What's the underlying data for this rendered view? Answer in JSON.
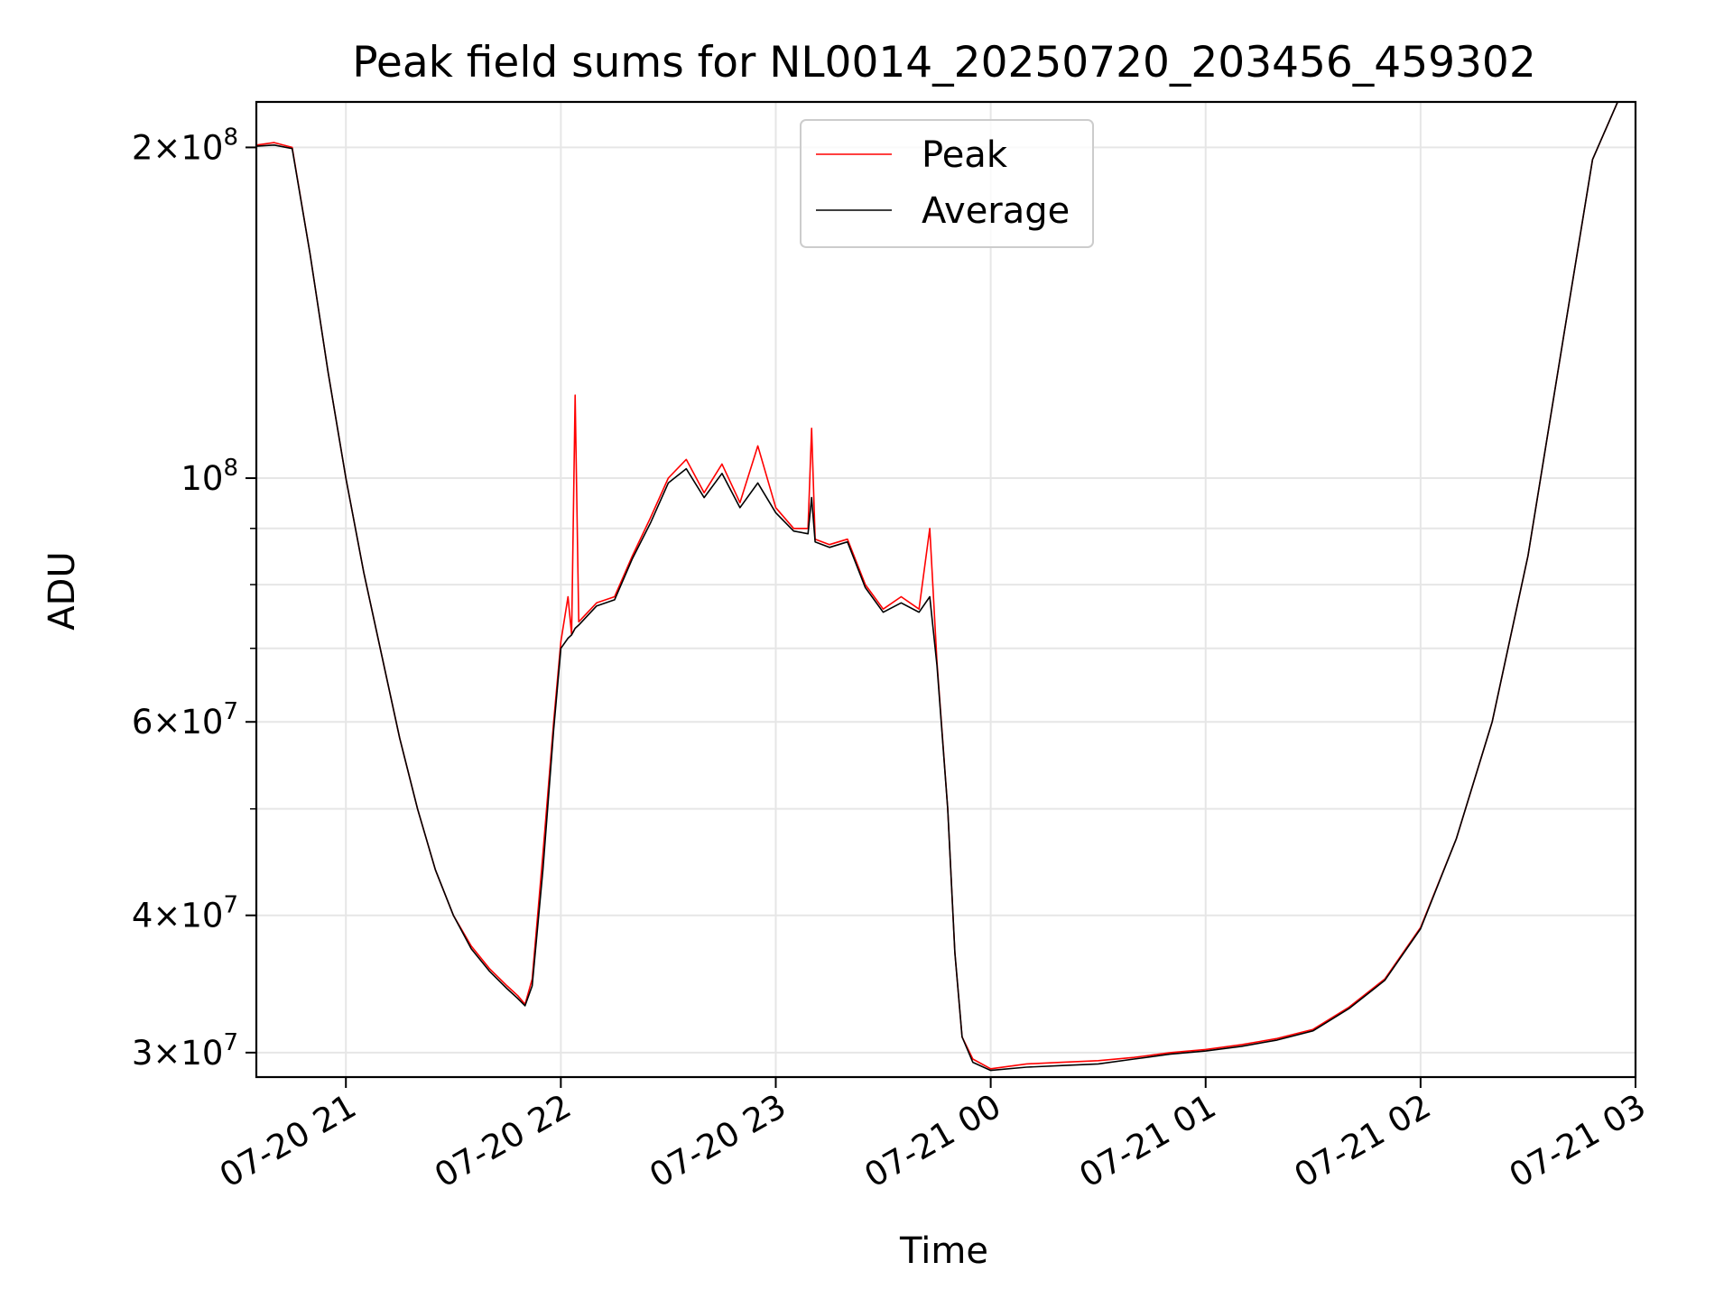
{
  "chart_data": {
    "type": "line",
    "title": "Peak field sums for NL0014_20250720_203456_459302",
    "xlabel": "Time",
    "ylabel": "ADU",
    "x_ticks": [
      "07-20 21",
      "07-20 22",
      "07-20 23",
      "07-21 00",
      "07-21 01",
      "07-21 02",
      "07-21 03"
    ],
    "y_ticks": [
      {
        "value": 30000000,
        "mant": "3",
        "exp": "7"
      },
      {
        "value": 40000000,
        "mant": "4",
        "exp": "7"
      },
      {
        "value": 60000000,
        "mant": "6",
        "exp": "7"
      },
      {
        "value": 100000000,
        "mant": "",
        "exp": "8"
      },
      {
        "value": 200000000,
        "mant": "2",
        "exp": "8"
      }
    ],
    "y_minor": [
      50000000,
      70000000,
      80000000,
      90000000
    ],
    "yscale": "log",
    "ylim": [
      28500000,
      220000000
    ],
    "xlim": [
      "07-20 20:35",
      "07-21 03:00"
    ],
    "grid": true,
    "legend_position": "upper center",
    "series": [
      {
        "name": "Peak",
        "color": "#ff0000",
        "points": [
          [
            "07-20 20:35",
            201000000
          ],
          [
            "07-20 20:40",
            202000000
          ],
          [
            "07-20 20:45",
            200000000
          ],
          [
            "07-20 20:50",
            160000000
          ],
          [
            "07-20 20:55",
            125000000
          ],
          [
            "07-20 21:00",
            100000000
          ],
          [
            "07-20 21:05",
            82000000
          ],
          [
            "07-20 21:10",
            69000000
          ],
          [
            "07-20 21:15",
            58000000
          ],
          [
            "07-20 21:20",
            50000000
          ],
          [
            "07-20 21:25",
            44000000
          ],
          [
            "07-20 21:30",
            40000000
          ],
          [
            "07-20 21:35",
            37500000
          ],
          [
            "07-20 21:40",
            35800000
          ],
          [
            "07-20 21:45",
            34500000
          ],
          [
            "07-20 21:48",
            33800000
          ],
          [
            "07-20 21:50",
            33200000
          ],
          [
            "07-20 21:52",
            35000000
          ],
          [
            "07-20 21:55",
            45500000
          ],
          [
            "07-20 21:58",
            60000000
          ],
          [
            "07-20 22:00",
            71000000
          ],
          [
            "07-20 22:02",
            78000000
          ],
          [
            "07-20 22:03",
            72000000
          ],
          [
            "07-20 22:04",
            119000000
          ],
          [
            "07-20 22:05",
            74000000
          ],
          [
            "07-20 22:10",
            77000000
          ],
          [
            "07-20 22:15",
            78000000
          ],
          [
            "07-20 22:20",
            85000000
          ],
          [
            "07-20 22:25",
            92000000
          ],
          [
            "07-20 22:30",
            100000000
          ],
          [
            "07-20 22:35",
            104000000
          ],
          [
            "07-20 22:40",
            97000000
          ],
          [
            "07-20 22:45",
            103000000
          ],
          [
            "07-20 22:50",
            95000000
          ],
          [
            "07-20 22:55",
            107000000
          ],
          [
            "07-20 23:00",
            94000000
          ],
          [
            "07-20 23:05",
            90000000
          ],
          [
            "07-20 23:09",
            90000000
          ],
          [
            "07-20 23:10",
            111000000
          ],
          [
            "07-20 23:11",
            88000000
          ],
          [
            "07-20 23:15",
            87000000
          ],
          [
            "07-20 23:20",
            88000000
          ],
          [
            "07-20 23:25",
            80000000
          ],
          [
            "07-20 23:30",
            76000000
          ],
          [
            "07-20 23:35",
            78000000
          ],
          [
            "07-20 23:40",
            76000000
          ],
          [
            "07-20 23:43",
            90000000
          ],
          [
            "07-20 23:45",
            68000000
          ],
          [
            "07-20 23:48",
            50000000
          ],
          [
            "07-20 23:50",
            37000000
          ],
          [
            "07-20 23:52",
            31000000
          ],
          [
            "07-20 23:55",
            29600000
          ],
          [
            "07-21 00:00",
            29000000
          ],
          [
            "07-21 00:10",
            29300000
          ],
          [
            "07-21 00:20",
            29400000
          ],
          [
            "07-21 00:30",
            29500000
          ],
          [
            "07-21 00:40",
            29700000
          ],
          [
            "07-21 00:50",
            30000000
          ],
          [
            "07-21 01:00",
            30200000
          ],
          [
            "07-21 01:10",
            30500000
          ],
          [
            "07-21 01:20",
            30900000
          ],
          [
            "07-21 01:30",
            31500000
          ],
          [
            "07-21 01:40",
            33000000
          ],
          [
            "07-21 01:50",
            35000000
          ],
          [
            "07-21 02:00",
            39000000
          ],
          [
            "07-21 02:10",
            47000000
          ],
          [
            "07-21 02:20",
            60000000
          ],
          [
            "07-21 02:30",
            85000000
          ],
          [
            "07-21 02:40",
            135000000
          ],
          [
            "07-21 02:48",
            195000000
          ],
          [
            "07-21 02:55",
            220000000
          ],
          [
            "07-21 03:00",
            220000000
          ]
        ]
      },
      {
        "name": "Average",
        "color": "#000000",
        "points": [
          [
            "07-20 20:35",
            200500000
          ],
          [
            "07-20 20:40",
            201000000
          ],
          [
            "07-20 20:45",
            199500000
          ],
          [
            "07-20 20:50",
            160000000
          ],
          [
            "07-20 20:55",
            125000000
          ],
          [
            "07-20 21:00",
            100000000
          ],
          [
            "07-20 21:05",
            82000000
          ],
          [
            "07-20 21:10",
            69000000
          ],
          [
            "07-20 21:15",
            58000000
          ],
          [
            "07-20 21:20",
            50000000
          ],
          [
            "07-20 21:25",
            44000000
          ],
          [
            "07-20 21:30",
            40000000
          ],
          [
            "07-20 21:35",
            37300000
          ],
          [
            "07-20 21:40",
            35600000
          ],
          [
            "07-20 21:45",
            34300000
          ],
          [
            "07-20 21:48",
            33600000
          ],
          [
            "07-20 21:50",
            33100000
          ],
          [
            "07-20 21:52",
            34500000
          ],
          [
            "07-20 21:55",
            44000000
          ],
          [
            "07-20 21:58",
            59000000
          ],
          [
            "07-20 22:00",
            70000000
          ],
          [
            "07-20 22:02",
            71500000
          ],
          [
            "07-20 22:03",
            72000000
          ],
          [
            "07-20 22:04",
            73000000
          ],
          [
            "07-20 22:05",
            73500000
          ],
          [
            "07-20 22:10",
            76500000
          ],
          [
            "07-20 22:15",
            77500000
          ],
          [
            "07-20 22:20",
            84500000
          ],
          [
            "07-20 22:25",
            91000000
          ],
          [
            "07-20 22:30",
            99000000
          ],
          [
            "07-20 22:35",
            102000000
          ],
          [
            "07-20 22:40",
            96000000
          ],
          [
            "07-20 22:45",
            101000000
          ],
          [
            "07-20 22:50",
            94000000
          ],
          [
            "07-20 22:55",
            99000000
          ],
          [
            "07-20 23:00",
            93000000
          ],
          [
            "07-20 23:05",
            89500000
          ],
          [
            "07-20 23:09",
            89000000
          ],
          [
            "07-20 23:10",
            96000000
          ],
          [
            "07-20 23:11",
            87500000
          ],
          [
            "07-20 23:15",
            86500000
          ],
          [
            "07-20 23:20",
            87500000
          ],
          [
            "07-20 23:25",
            79500000
          ],
          [
            "07-20 23:30",
            75500000
          ],
          [
            "07-20 23:35",
            77000000
          ],
          [
            "07-20 23:40",
            75500000
          ],
          [
            "07-20 23:43",
            78000000
          ],
          [
            "07-20 23:45",
            67500000
          ],
          [
            "07-20 23:48",
            50000000
          ],
          [
            "07-20 23:50",
            37000000
          ],
          [
            "07-20 23:52",
            31000000
          ],
          [
            "07-20 23:55",
            29400000
          ],
          [
            "07-21 00:00",
            28900000
          ],
          [
            "07-21 00:10",
            29100000
          ],
          [
            "07-21 00:20",
            29200000
          ],
          [
            "07-21 00:30",
            29300000
          ],
          [
            "07-21 00:40",
            29600000
          ],
          [
            "07-21 00:50",
            29900000
          ],
          [
            "07-21 01:00",
            30100000
          ],
          [
            "07-21 01:10",
            30400000
          ],
          [
            "07-21 01:20",
            30800000
          ],
          [
            "07-21 01:30",
            31400000
          ],
          [
            "07-21 01:40",
            32900000
          ],
          [
            "07-21 01:50",
            34900000
          ],
          [
            "07-21 02:00",
            38900000
          ],
          [
            "07-21 02:10",
            47000000
          ],
          [
            "07-21 02:20",
            60000000
          ],
          [
            "07-21 02:30",
            85000000
          ],
          [
            "07-21 02:40",
            135000000
          ],
          [
            "07-21 02:48",
            195000000
          ],
          [
            "07-21 02:55",
            220000000
          ],
          [
            "07-21 03:00",
            220000000
          ]
        ]
      }
    ]
  }
}
